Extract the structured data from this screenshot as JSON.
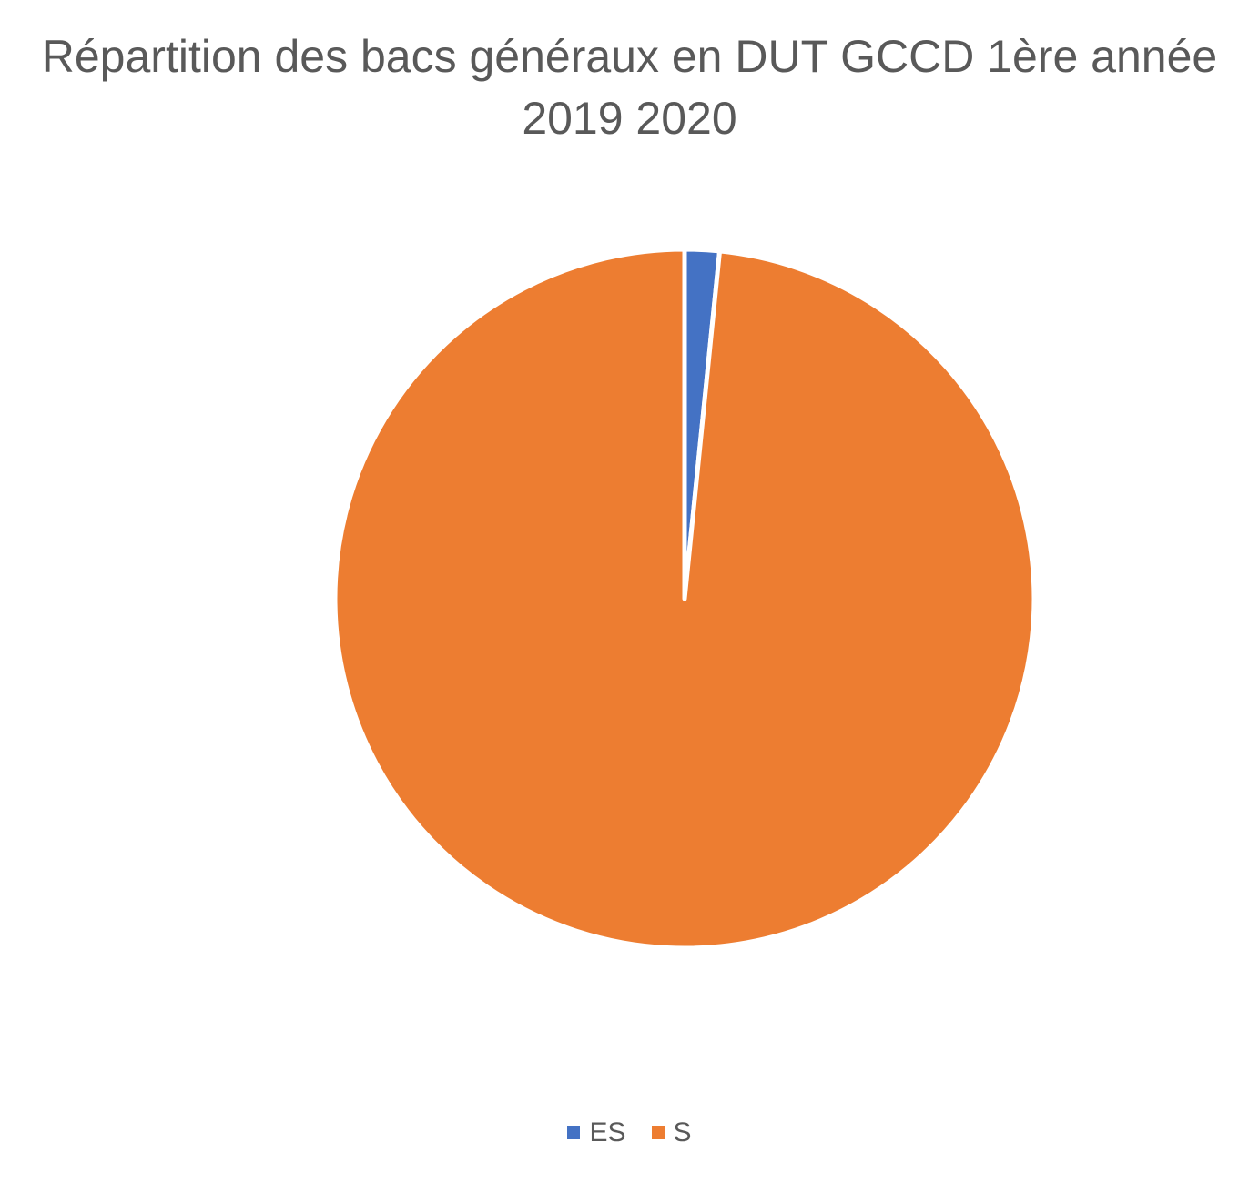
{
  "chart_data": {
    "type": "pie",
    "title_line1": "Répartition des bacs généraux en DUT GCCD 1ère année",
    "title_line2": "2019 2020",
    "slices": [
      {
        "label": "ES",
        "value": 1.6,
        "color": "#4472C4"
      },
      {
        "label": "S",
        "value": 98.4,
        "color": "#ED7D31"
      }
    ],
    "legend_position": "bottom",
    "start_angle_deg": 0,
    "direction": "clockwise"
  }
}
